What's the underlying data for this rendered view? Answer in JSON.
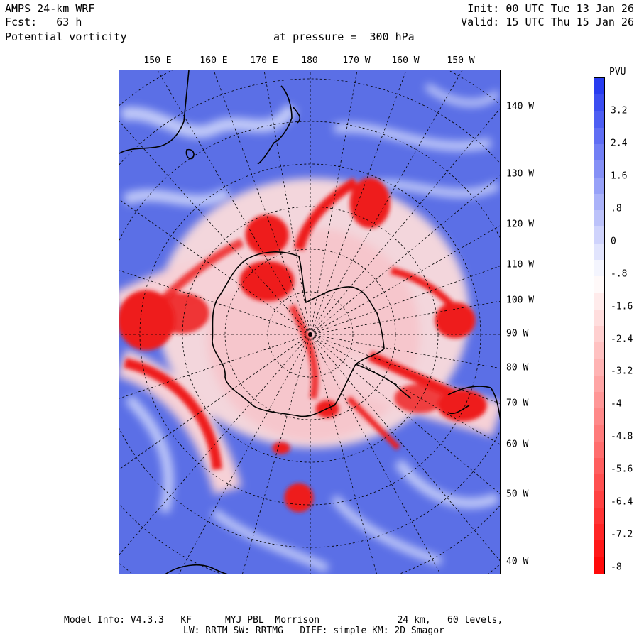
{
  "header": {
    "model": "AMPS 24-km WRF",
    "fcst": "Fcst:   63 h",
    "field": "Potential vorticity",
    "pressure": "at pressure =  300 hPa",
    "init": "Init: 00 UTC Tue 13 Jan 26",
    "valid": "Valid: 15 UTC Thu 15 Jan 26"
  },
  "map": {
    "top_labels": [
      "150 E",
      "160 E",
      "170 E",
      "180",
      "170 W",
      "160 W",
      "150 W"
    ],
    "right_labels": [
      "140 W",
      "130 W",
      "120 W",
      "110 W",
      "100 W",
      "90 W",
      "80 W",
      "70 W",
      "60 W",
      "50 W",
      "40 W"
    ],
    "colors": {
      "positive": "#3a4ee0",
      "zero": "#ffffff",
      "negative": "#ee1111",
      "coastline": "#000000"
    }
  },
  "colorbar": {
    "unit": "PVU",
    "tick_labels": [
      "3.2",
      "2.4",
      "1.6",
      ".8",
      "0",
      "-.8",
      "-1.6",
      "-2.4",
      "-3.2",
      "-4",
      "-4.8",
      "-5.6",
      "-6.4",
      "-7.2",
      "-8"
    ],
    "range": [
      -8,
      4
    ]
  },
  "footer": {
    "line1": "Model Info: V4.3.3   KF      MYJ PBL  Morrison              24 km,   60 levels,",
    "line2": "LW: RRTM SW: RRTMG   DIFF: simple KM: 2D Smagor"
  }
}
